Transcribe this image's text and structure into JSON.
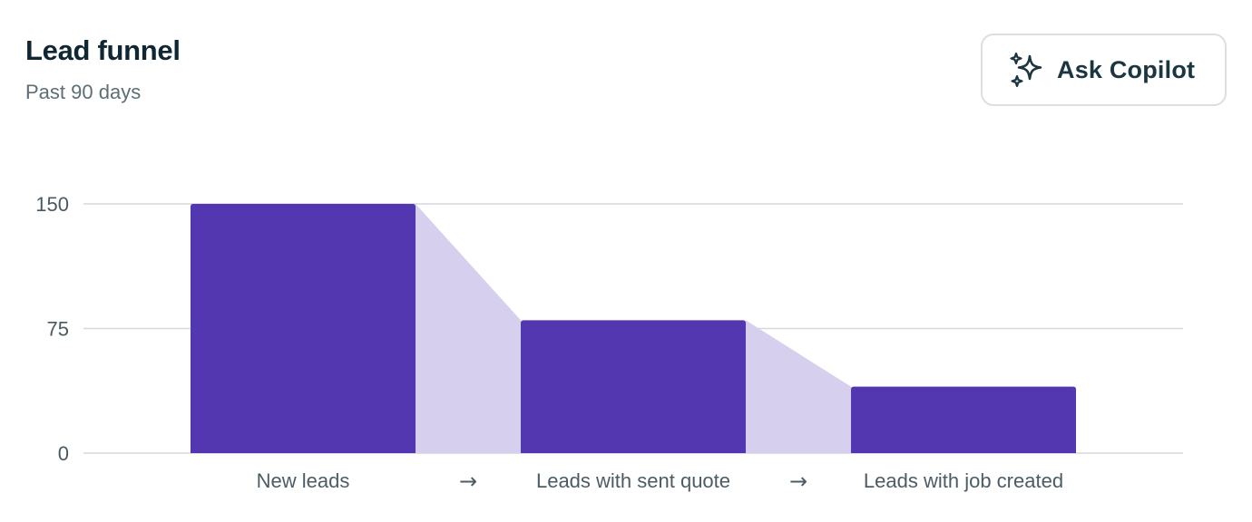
{
  "header": {
    "title": "Lead funnel",
    "subtitle": "Past 90 days"
  },
  "copilot_button": {
    "label": "Ask Copilot",
    "icon": "sparkles-icon"
  },
  "colors": {
    "bar": "#5237b0",
    "connector": "#d6cfee",
    "grid": "#d3d8db"
  },
  "chart_data": {
    "type": "bar",
    "categories": [
      "New leads",
      "Leads with sent quote",
      "Leads with job created"
    ],
    "values": [
      150,
      80,
      40
    ],
    "yticks": [
      0,
      75,
      150
    ],
    "ylim": [
      0,
      150
    ],
    "title": "",
    "xlabel": "",
    "ylabel": "",
    "grid": true,
    "separator": "→"
  }
}
